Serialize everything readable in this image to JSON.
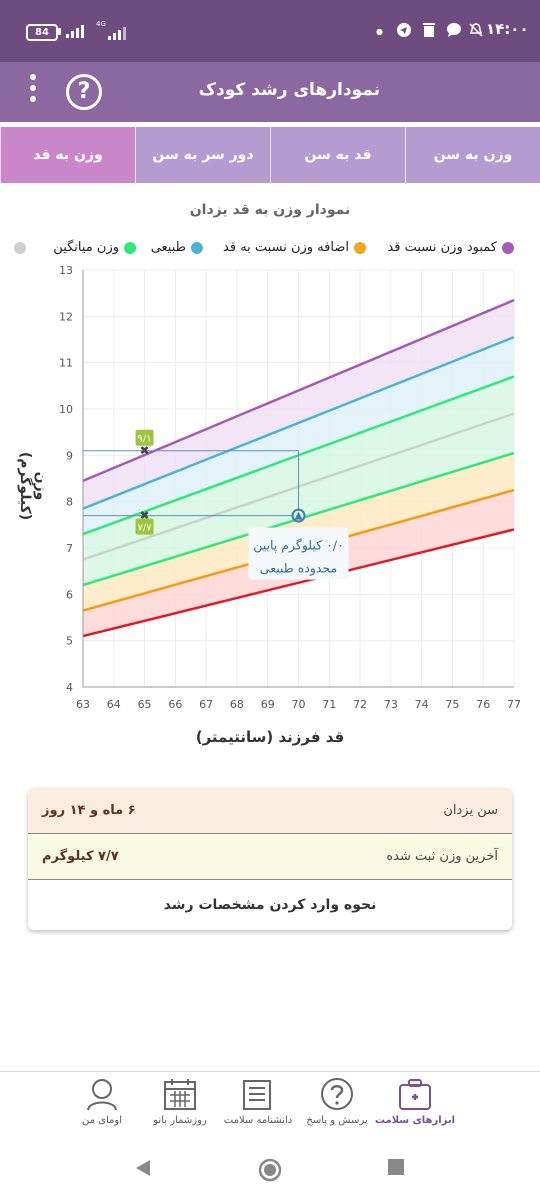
{
  "status_bar": {
    "time": "۱۴:۰۰",
    "battery": "84",
    "network": "4G"
  },
  "app_bar": {
    "title": "نمودارهای رشد کودک",
    "help_label": "?"
  },
  "tabs": [
    {
      "label": "وزن به سن",
      "active": false
    },
    {
      "label": "قد به سن",
      "active": false
    },
    {
      "label": "دور سر به سن",
      "active": false
    },
    {
      "label": "وزن به قد",
      "active": true
    }
  ],
  "chart_title": "نمودار وزن به قد یزدان",
  "legend": [
    {
      "label": "کمبود وزن نسبت قد",
      "color": "#a55bb5"
    },
    {
      "label": "اضافه وزن نسبت به قد",
      "color": "#f5a623"
    },
    {
      "label": "طبیعی",
      "color": "#4db3d4"
    },
    {
      "label": "وزن میانگین",
      "color": "#2ee87a"
    },
    {
      "label": "",
      "color": "#d0d0d0"
    }
  ],
  "chart_data": {
    "type": "line",
    "xlabel": "قد فرزند (سانتیمتر)",
    "ylabel": "وزن (کیلوگرم)",
    "xlim": [
      63,
      77
    ],
    "ylim": [
      4,
      13
    ],
    "x_ticks": [
      63,
      64,
      65,
      66,
      67,
      68,
      69,
      70,
      71,
      72,
      73,
      74,
      75,
      76,
      77
    ],
    "y_ticks": [
      4,
      5,
      6,
      7,
      8,
      9,
      10,
      11,
      12,
      13
    ],
    "grid": true,
    "curves": [
      {
        "color": "#e01b24",
        "x": [
          63,
          77
        ],
        "y": [
          5.1,
          7.4
        ]
      },
      {
        "color": "#f39c12",
        "x": [
          63,
          77
        ],
        "y": [
          5.65,
          8.25
        ]
      },
      {
        "color": "#2ee87a",
        "x": [
          63,
          77
        ],
        "y": [
          6.2,
          9.05
        ]
      },
      {
        "color": "#c9d3c9",
        "x": [
          63,
          77
        ],
        "y": [
          6.75,
          9.9
        ]
      },
      {
        "color": "#2ee87a",
        "x": [
          63,
          77
        ],
        "y": [
          7.3,
          10.7
        ]
      },
      {
        "color": "#4db3d4",
        "x": [
          63,
          77
        ],
        "y": [
          7.85,
          11.55
        ]
      },
      {
        "color": "#a55bb5",
        "x": [
          63,
          77
        ],
        "y": [
          8.45,
          12.35
        ]
      }
    ],
    "bands": [
      {
        "color": "#ffd6d6",
        "from": 0,
        "to": 1
      },
      {
        "color": "#ffe9c2",
        "from": 1,
        "to": 2
      },
      {
        "color": "#d7f7e3",
        "from": 2,
        "to": 4
      },
      {
        "color": "#dff1f9",
        "from": 4,
        "to": 5
      },
      {
        "color": "#efe0f4",
        "from": 5,
        "to": 6
      }
    ],
    "markers": [
      {
        "x": 65,
        "y": 9.1,
        "label": "۹/۱"
      },
      {
        "x": 65,
        "y": 7.7,
        "label": "۷/۷"
      }
    ],
    "measured_point": {
      "x": 70,
      "y": 7.7
    },
    "annotation": {
      "line1": "۰/۰ کیلوگرم پایین",
      "line2": "محدوده طبیعی"
    }
  },
  "info_card": {
    "age_label": "سن یزدان",
    "age_value": "۶ ماه و ۱۴ روز",
    "weight_label": "آخرین وزن ثبت شده",
    "weight_value": "۷/۷ کیلوگرم",
    "howto": "نحوه وارد کردن مشخصات رشد"
  },
  "bottom_nav": [
    {
      "label": "ابزارهای سلامت",
      "icon": "health-kit-icon",
      "active": true
    },
    {
      "label": "پرسش و پاسخ",
      "icon": "question-icon",
      "active": false
    },
    {
      "label": "دانشنامه سلامت",
      "icon": "encyclopedia-icon",
      "active": false
    },
    {
      "label": "روزشمار بانو",
      "icon": "calendar-icon",
      "active": false
    },
    {
      "label": "اومای من",
      "icon": "profile-icon",
      "active": false
    }
  ]
}
